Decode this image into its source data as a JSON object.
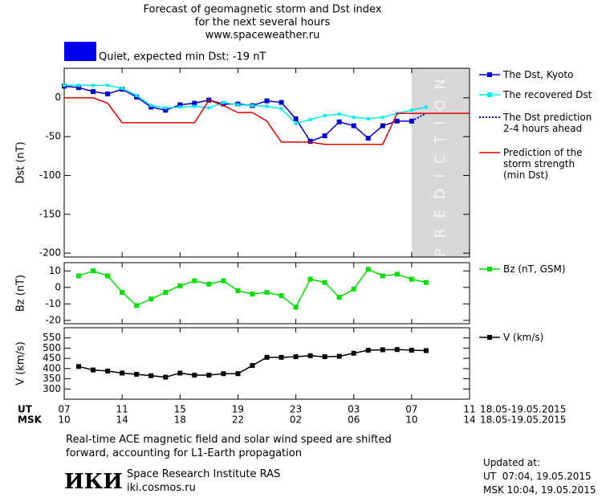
{
  "header": {
    "title_lines": [
      "Forecast of geomagnetic storm and Dst index",
      "for the next several hours",
      "www.spaceweather.ru"
    ],
    "status": "Quiet, expected min Dst: -19 nT",
    "status_color": "#0000ee"
  },
  "chart_data": [
    {
      "type": "line",
      "ylabel": "Dst (nT)",
      "xlim": [
        0,
        28
      ],
      "ylim": [
        -205,
        38
      ],
      "yticks": [
        0,
        -50,
        -100,
        -150,
        -200
      ],
      "prediction_region": {
        "x": [
          24,
          28
        ],
        "label": "PREDICTION"
      },
      "series": [
        {
          "name": "The Dst, Kyoto",
          "color": "#0000cc",
          "marker": "square",
          "x": [
            0,
            1,
            2,
            3,
            4,
            5,
            6,
            7,
            8,
            9,
            10,
            11,
            12,
            13,
            14,
            15,
            16,
            17,
            18,
            19,
            20,
            21,
            22,
            23,
            24
          ],
          "values": [
            15,
            13,
            8,
            5,
            11,
            1,
            -12,
            -16,
            -9,
            -7,
            -3,
            -8,
            -8,
            -10,
            -4,
            -6,
            -27,
            -56,
            -49,
            -31,
            -36,
            -52,
            -36,
            -30,
            -30
          ]
        },
        {
          "name": "The recovered Dst",
          "color": "#00eeee",
          "marker": "square-small",
          "x": [
            0,
            1,
            2,
            3,
            4,
            5,
            6,
            7,
            8,
            9,
            10,
            11,
            12,
            13,
            14,
            15,
            16,
            17,
            18,
            19,
            20,
            21,
            22,
            23,
            24,
            25
          ],
          "values": [
            16,
            16,
            16,
            16,
            12,
            3,
            -10,
            -13,
            -12,
            -11,
            -13,
            -6,
            -9,
            -10,
            -11,
            -14,
            -33,
            -28,
            -23,
            -21,
            -25,
            -27,
            -25,
            -20,
            -16,
            -12
          ]
        },
        {
          "name": "The Dst prediction\n2-4 hours ahead",
          "color": "#0000cc",
          "dash": "dotted",
          "x": [
            24,
            25
          ],
          "values": [
            -30,
            -20
          ]
        },
        {
          "name": "Prediction of the\nstorm strength\n(min Dst)",
          "color": "#dd0000",
          "x": [
            0,
            2,
            3,
            4,
            9,
            10,
            11,
            12,
            13,
            14,
            15,
            17,
            18,
            22,
            23,
            28
          ],
          "values": [
            0,
            0,
            -7,
            -32,
            -32,
            -3,
            -10,
            -19,
            -19,
            -30,
            -57,
            -57,
            -60,
            -60,
            -20,
            -20
          ]
        }
      ]
    },
    {
      "type": "line",
      "ylabel": "Bz (nT)",
      "xlim": [
        0,
        28
      ],
      "ylim": [
        -22,
        15
      ],
      "yticks": [
        10,
        0,
        -10,
        -20
      ],
      "series": [
        {
          "name": "Bz (nT, GSM)",
          "color": "#00dd00",
          "marker": "square",
          "x": [
            1,
            2,
            3,
            4,
            5,
            6,
            7,
            8,
            9,
            10,
            11,
            12,
            13,
            14,
            15,
            16,
            17,
            18,
            19,
            20,
            21,
            22,
            23,
            24,
            25
          ],
          "values": [
            7,
            10,
            7,
            -3,
            -11,
            -7,
            -3,
            1,
            4,
            2,
            4,
            -2,
            -4,
            -3,
            -5,
            -12,
            5,
            3,
            -6,
            -1,
            11,
            7,
            8,
            5,
            3
          ]
        }
      ]
    },
    {
      "type": "line",
      "ylabel": "V (km/s)",
      "xlim": [
        0,
        28
      ],
      "ylim": [
        250,
        600
      ],
      "yticks": [
        300,
        350,
        400,
        450,
        500,
        550
      ],
      "series": [
        {
          "name": "V (km/s)",
          "color": "#000000",
          "marker": "square",
          "x": [
            1,
            2,
            3,
            4,
            5,
            6,
            7,
            8,
            9,
            10,
            11,
            12,
            13,
            14,
            15,
            16,
            17,
            18,
            19,
            20,
            21,
            22,
            23,
            24,
            25
          ],
          "values": [
            410,
            393,
            388,
            378,
            372,
            365,
            358,
            378,
            368,
            368,
            375,
            375,
            415,
            455,
            455,
            458,
            463,
            458,
            460,
            475,
            490,
            492,
            493,
            490,
            488
          ]
        }
      ],
      "xticks": [
        {
          "value": 0,
          "label": "07"
        },
        {
          "value": 4,
          "label": "11"
        },
        {
          "value": 8,
          "label": "15"
        },
        {
          "value": 12,
          "label": "19"
        },
        {
          "value": 16,
          "label": "23"
        },
        {
          "value": 20,
          "label": "03"
        },
        {
          "value": 24,
          "label": "07"
        },
        {
          "value": 28,
          "label": "11"
        }
      ],
      "x_row_names": [
        "UT",
        "MSK"
      ],
      "msk_tick_labels": [
        "10",
        "14",
        "18",
        "22",
        "02",
        "06",
        "10",
        "14"
      ],
      "date_range_ut": "18.05-19.05.2015",
      "date_range_msk": "18.05-19.05.2015"
    }
  ],
  "footer": {
    "note_lines": [
      "Real-time ACE magnetic field and solar wind speed are shifted",
      "forward, accounting for L1-Earth propagation"
    ],
    "logo": "ИКИ",
    "institute": "Space Research Institute RAS",
    "site": "iki.cosmos.ru",
    "updated_lines": [
      "Updated at:",
      "UT  07:04, 19.05.2015",
      "MSK 10:04, 19.05.2015"
    ]
  }
}
